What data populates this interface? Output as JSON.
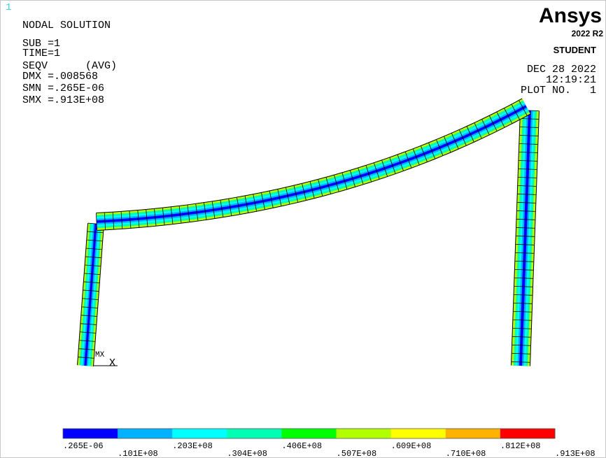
{
  "window_number": "1",
  "info": [
    "NODAL SOLUTION",
    "SUB =1",
    "TIME=1",
    "SEQV      (AVG)",
    "DMX =.008568",
    "SMN =.265E-06",
    "SMX =.913E+08"
  ],
  "brand": {
    "name": "Ansys",
    "version": "2022 R2",
    "edition": "STUDENT"
  },
  "stamp": [
    "DEC 28 2022",
    "12:19:21",
    "PLOT NO.   1"
  ],
  "triad": {
    "marker": "MX",
    "axis": "X"
  },
  "legend": {
    "labels": [
      ".265E-06",
      ".101E+08",
      ".203E+08",
      ".304E+08",
      ".406E+08",
      ".507E+08",
      ".609E+08",
      ".710E+08",
      ".812E+08",
      ".913E+08"
    ],
    "colors": [
      "#0000ff",
      "#00b2ff",
      "#00ffff",
      "#00ffb2",
      "#00ff00",
      "#b2ff00",
      "#ffff00",
      "#ffb200",
      "#ff0000"
    ]
  }
}
